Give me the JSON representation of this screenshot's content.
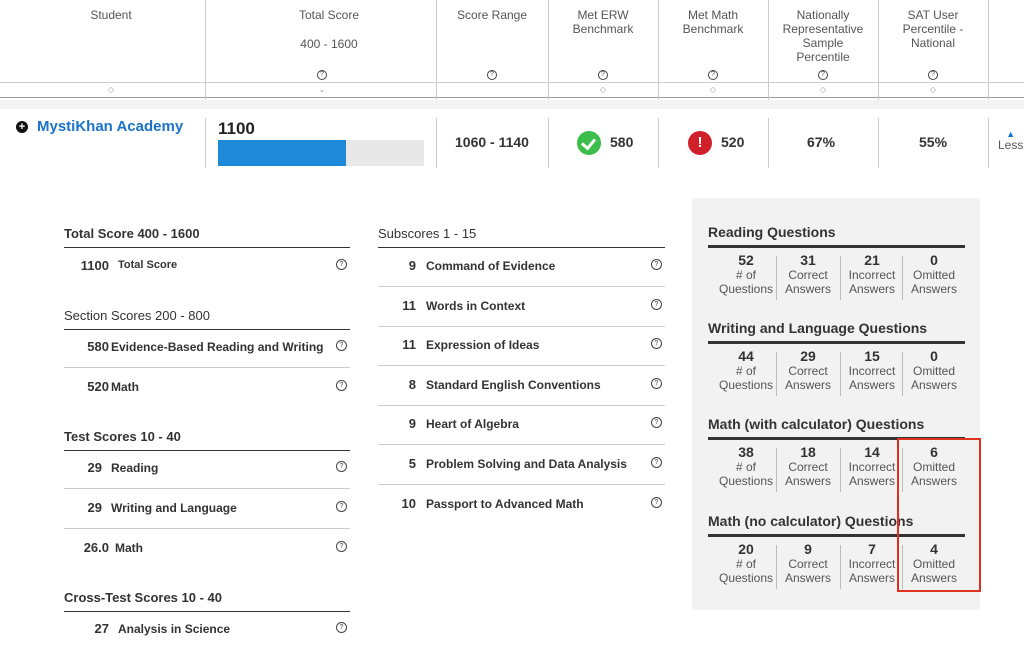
{
  "header": {
    "columns": [
      {
        "label": "Student",
        "range": ""
      },
      {
        "label": "Total Score",
        "range": "400 - 1600"
      },
      {
        "label": "Score Range",
        "range": ""
      },
      {
        "label": "Met ERW Benchmark",
        "range": ""
      },
      {
        "label": "Met Math Benchmark",
        "range": ""
      },
      {
        "label": "Nationally Representative Sample Percentile",
        "range": ""
      },
      {
        "label": "SAT User Percentile - National",
        "range": ""
      }
    ],
    "help_glyph": "?",
    "sort_glyph": "◇"
  },
  "student": {
    "name": "MystiKhan Academy",
    "total_score": "1100",
    "total_score_fill_percent": 62,
    "score_range": "1060 - 1140",
    "erw_score": "580",
    "math_score": "520",
    "national_percentile": "67%",
    "user_percentile": "55%",
    "less_label": "Less"
  },
  "total_section": {
    "heading": "Total Score 400 - 1600",
    "rows": [
      {
        "value": "1100",
        "label": "Total Score"
      }
    ]
  },
  "section_scores": {
    "heading": "Section Scores 200 - 800",
    "rows": [
      {
        "value": "580",
        "label": "Evidence-Based Reading and Writing"
      },
      {
        "value": "520",
        "label": "Math"
      }
    ]
  },
  "test_scores": {
    "heading": "Test Scores 10 - 40",
    "rows": [
      {
        "value": "29",
        "label": "Reading"
      },
      {
        "value": "29",
        "label": "Writing and Language"
      },
      {
        "value": "26.0",
        "label": "Math"
      }
    ]
  },
  "cross_test": {
    "heading": "Cross-Test Scores 10 - 40",
    "rows": [
      {
        "value": "27",
        "label": "Analysis in Science"
      }
    ]
  },
  "subscores": {
    "heading": "Subscores 1 - 15",
    "rows": [
      {
        "value": "9",
        "label": "Command of Evidence"
      },
      {
        "value": "11",
        "label": "Words in Context"
      },
      {
        "value": "11",
        "label": "Expression of Ideas"
      },
      {
        "value": "8",
        "label": "Standard English Conventions"
      },
      {
        "value": "9",
        "label": "Heart of Algebra"
      },
      {
        "value": "5",
        "label": "Problem Solving and Data Analysis"
      },
      {
        "value": "10",
        "label": "Passport to Advanced Math"
      }
    ]
  },
  "question_labels": {
    "q": [
      "# of",
      "Questions"
    ],
    "c": [
      "Correct",
      "Answers"
    ],
    "i": [
      "Incorrect",
      "Answers"
    ],
    "o": [
      "Omitted",
      "Answers"
    ]
  },
  "question_groups": [
    {
      "title": "Reading Questions",
      "questions": "52",
      "correct": "31",
      "incorrect": "21",
      "omitted": "0"
    },
    {
      "title": "Writing and Language Questions",
      "questions": "44",
      "correct": "29",
      "incorrect": "15",
      "omitted": "0"
    },
    {
      "title": "Math (with calculator) Questions",
      "questions": "38",
      "correct": "18",
      "incorrect": "14",
      "omitted": "6"
    },
    {
      "title": "Math (no calculator) Questions",
      "questions": "20",
      "correct": "9",
      "incorrect": "7",
      "omitted": "4"
    }
  ],
  "colors": {
    "link": "#1a73c9",
    "bar": "#1e88d9",
    "met": "#3bbf4a",
    "not_met": "#d0202a",
    "highlight": "#e03020"
  }
}
